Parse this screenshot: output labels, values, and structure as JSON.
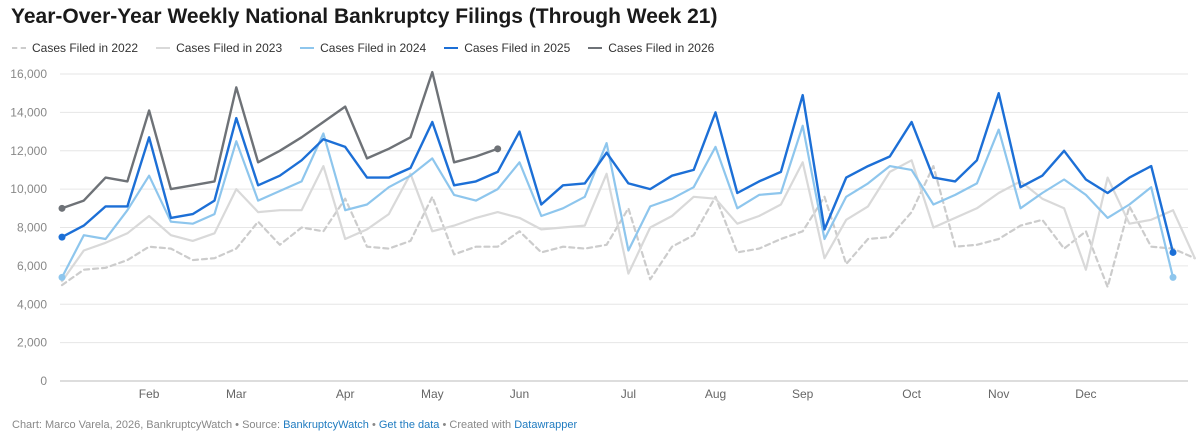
{
  "chart_data": {
    "type": "line",
    "title": "Year-Over-Year Weekly National Bankruptcy Filings (Through Week 21)",
    "xlabel": "",
    "ylabel": "",
    "ylim": [
      0,
      16000
    ],
    "yticks": [
      0,
      2000,
      4000,
      6000,
      8000,
      10000,
      12000,
      14000,
      16000
    ],
    "ytick_labels": [
      "0",
      "2,000",
      "4,000",
      "6,000",
      "8,000",
      "10,000",
      "12,000",
      "14,000",
      "16,000"
    ],
    "x_month_labels": [
      {
        "label": "Feb",
        "week": 5
      },
      {
        "label": "Mar",
        "week": 9
      },
      {
        "label": "Apr",
        "week": 14
      },
      {
        "label": "May",
        "week": 18
      },
      {
        "label": "Jun",
        "week": 22
      },
      {
        "label": "Jul",
        "week": 27
      },
      {
        "label": "Aug",
        "week": 31
      },
      {
        "label": "Sep",
        "week": 35
      },
      {
        "label": "Oct",
        "week": 40
      },
      {
        "label": "Nov",
        "week": 44
      },
      {
        "label": "Dec",
        "week": 48
      }
    ],
    "weeks": 52,
    "grid": true,
    "legend_position": "top-left",
    "series": [
      {
        "name": "Cases Filed in 2022",
        "color": "#cccccc",
        "dashed": true,
        "values": [
          5000,
          5800,
          5900,
          6300,
          7000,
          6900,
          6300,
          6400,
          6900,
          8300,
          7100,
          8000,
          7800,
          9500,
          7000,
          6900,
          7300,
          9600,
          6600,
          7000,
          7000,
          7800,
          6700,
          7000,
          6900,
          7100,
          9000,
          5300,
          7000,
          7600,
          9600,
          6700,
          6900,
          7400,
          7800,
          9600,
          6100,
          7400,
          7500,
          8800,
          11200,
          7000,
          7100,
          7400,
          8100,
          8400,
          6900,
          7800,
          4900,
          9100,
          7000,
          6900,
          6400
        ]
      },
      {
        "name": "Cases Filed in 2023",
        "color": "#d9d9d9",
        "dashed": false,
        "values": [
          5200,
          6800,
          7200,
          7700,
          8600,
          7600,
          7300,
          7700,
          10000,
          8800,
          8900,
          8900,
          11200,
          7400,
          7900,
          8700,
          10800,
          7800,
          8100,
          8500,
          8800,
          8500,
          7900,
          8000,
          8100,
          10800,
          5600,
          8000,
          8600,
          9600,
          9500,
          8200,
          8600,
          9200,
          11400,
          6400,
          8400,
          9100,
          10900,
          11500,
          8000,
          8500,
          9000,
          9800,
          10400,
          9500,
          9000,
          5800,
          10600,
          8200,
          8400,
          8900,
          6400
        ]
      },
      {
        "name": "Cases Filed in 2024",
        "color": "#8ec6ed",
        "dashed": false,
        "values": [
          5400,
          7600,
          7400,
          8900,
          10700,
          8300,
          8200,
          8700,
          12500,
          9400,
          9900,
          10400,
          12900,
          8900,
          9200,
          10100,
          10700,
          11600,
          9700,
          9400,
          10000,
          11400,
          8600,
          9000,
          9600,
          12400,
          6800,
          9100,
          9500,
          10100,
          12200,
          9000,
          9700,
          9800,
          13300,
          7400,
          9600,
          10300,
          11200,
          11000,
          9200,
          9700,
          10300,
          13100,
          9000,
          9800,
          10500,
          9700,
          8500,
          9200,
          10100,
          5400
        ]
      },
      {
        "name": "Cases Filed in 2025",
        "color": "#1c6fd6",
        "dashed": false,
        "values": [
          7500,
          8100,
          9100,
          9100,
          12700,
          8500,
          8700,
          9400,
          13700,
          10200,
          10700,
          11500,
          12600,
          12200,
          10600,
          10600,
          11100,
          13500,
          10200,
          10400,
          10900,
          13000,
          9200,
          10200,
          10300,
          11900,
          10300,
          10000,
          10700,
          11000,
          14000,
          9800,
          10400,
          10900,
          14900,
          7900,
          10600,
          11200,
          11700,
          13500,
          10600,
          10400,
          11500,
          15000,
          10100,
          10700,
          12000,
          10500,
          9800,
          10600,
          11200,
          6700
        ]
      },
      {
        "name": "Cases Filed in 2026",
        "color": "#6e7277",
        "dashed": false,
        "values": [
          9000,
          9400,
          10600,
          10400,
          14100,
          10000,
          10200,
          10400,
          15300,
          11400,
          12000,
          12700,
          13500,
          14300,
          11600,
          12100,
          12700,
          16100,
          11400,
          11700,
          12100
        ]
      }
    ]
  },
  "footer": {
    "credit": "Chart: Marco Varela, 2026, BankruptcyWatch",
    "source_prefix": "Source:",
    "source_link": "BankruptcyWatch",
    "data_link": "Get the data",
    "created_prefix": "Created with",
    "created_link": "Datawrapper",
    "separator": "•"
  }
}
